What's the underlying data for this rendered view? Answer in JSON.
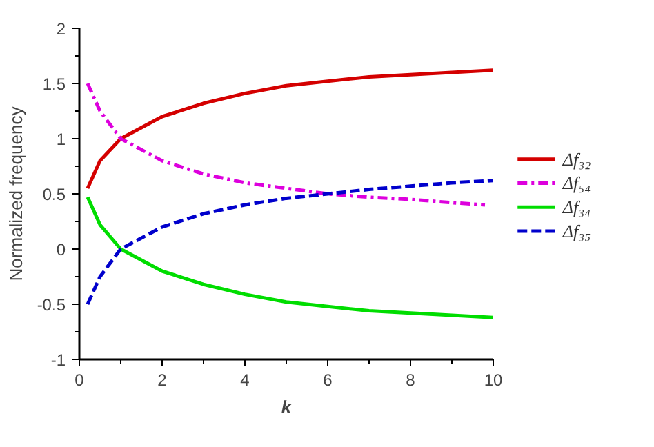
{
  "chart_data": {
    "type": "line",
    "xlabel": "k",
    "ylabel": "Normalized frequency",
    "x": [
      0.2,
      0.5,
      1,
      2,
      3,
      4,
      5,
      6,
      7,
      8,
      9,
      10
    ],
    "xlim": [
      0,
      10
    ],
    "xticks": [
      0,
      2,
      4,
      6,
      8,
      10
    ],
    "ylim": [
      -1,
      2
    ],
    "yticks": [
      -1,
      -0.5,
      0,
      0.5,
      1,
      1.5,
      2
    ],
    "grid": false,
    "legend": "right",
    "marker": "none",
    "series": [
      {
        "name": "Δf₃₂",
        "color": "#d40000",
        "line_style": "solid",
        "values": [
          0.55,
          0.8,
          1.0,
          1.2,
          1.32,
          1.41,
          1.48,
          1.52,
          1.56,
          1.58,
          1.6,
          1.62
        ]
      },
      {
        "name": "Δf₅₄",
        "color": "#dd00dd",
        "line_style": "dashdot",
        "x": [
          0.2,
          0.5,
          1,
          2,
          3,
          4,
          5,
          6,
          7,
          8,
          9,
          9.8
        ],
        "values": [
          1.5,
          1.25,
          1.0,
          0.8,
          0.68,
          0.6,
          0.55,
          0.5,
          0.47,
          0.45,
          0.42,
          0.4
        ]
      },
      {
        "name": "Δf₃₄",
        "color": "#00dd00",
        "line_style": "solid",
        "values": [
          0.47,
          0.22,
          0.0,
          -0.2,
          -0.32,
          -0.41,
          -0.48,
          -0.52,
          -0.56,
          -0.58,
          -0.6,
          -0.62
        ]
      },
      {
        "name": "Δf₃₅",
        "color": "#0000cc",
        "line_style": "dashed",
        "values": [
          -0.5,
          -0.25,
          0.0,
          0.2,
          0.32,
          0.4,
          0.46,
          0.5,
          0.54,
          0.57,
          0.6,
          0.62
        ]
      }
    ]
  }
}
